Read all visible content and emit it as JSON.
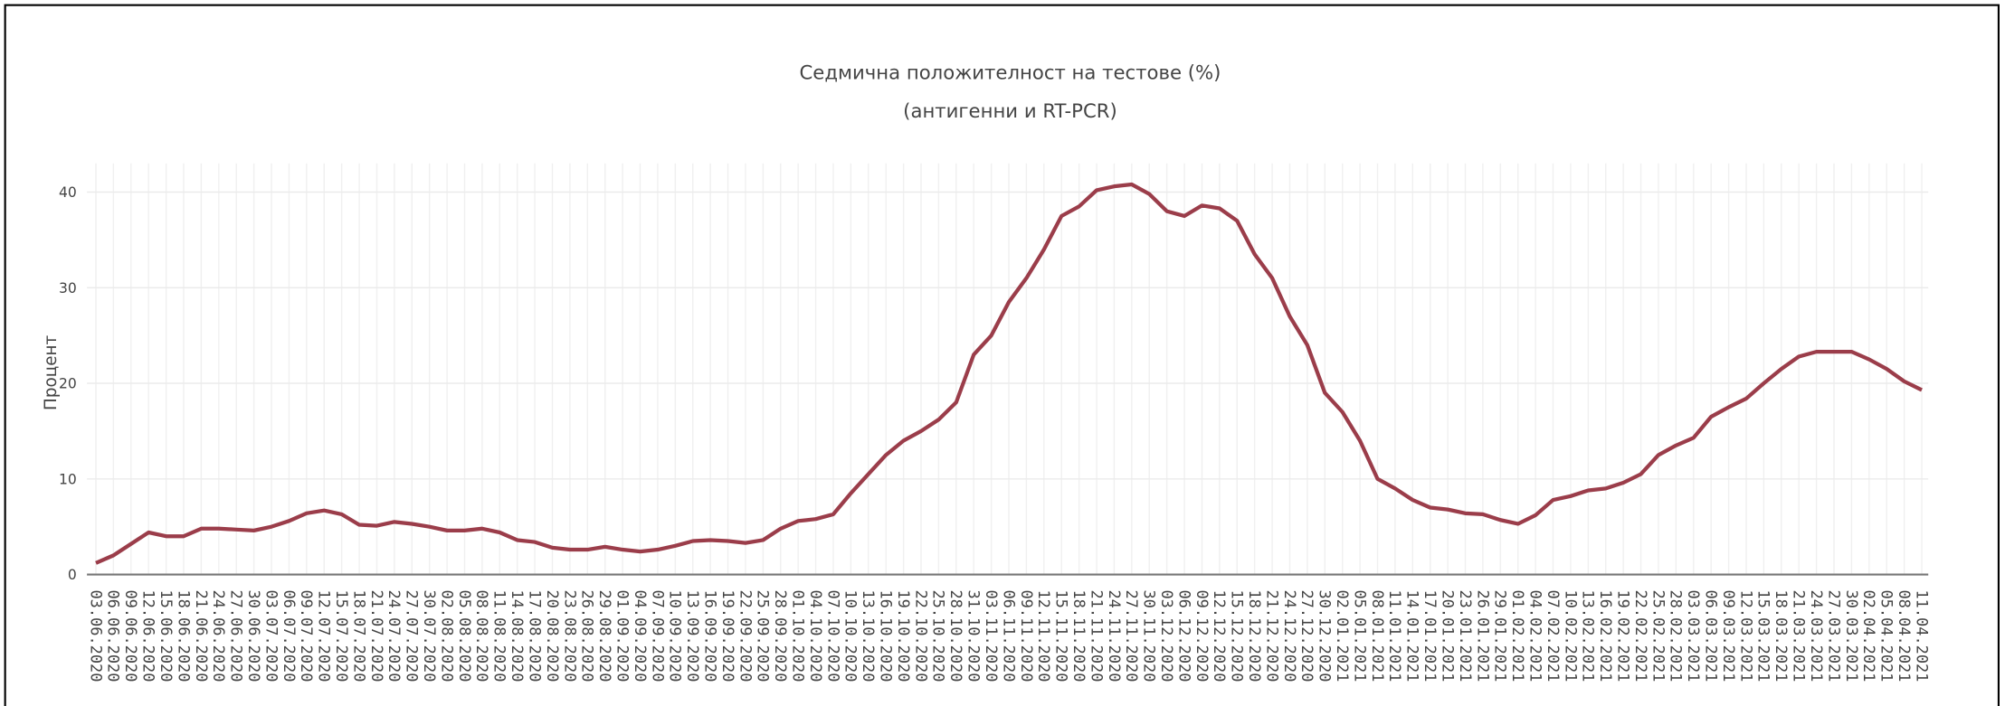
{
  "chart_data": {
    "type": "line",
    "title": "Седмична положителност на тестове (%)",
    "subtitle": "(антигенни и RT-PCR)",
    "y_label": "Процент",
    "categories": [
      "03.06.2020",
      "06.06.2020",
      "09.06.2020",
      "12.06.2020",
      "15.06.2020",
      "18.06.2020",
      "21.06.2020",
      "24.06.2020",
      "27.06.2020",
      "30.06.2020",
      "03.07.2020",
      "06.07.2020",
      "09.07.2020",
      "12.07.2020",
      "15.07.2020",
      "18.07.2020",
      "21.07.2020",
      "24.07.2020",
      "27.07.2020",
      "30.07.2020",
      "02.08.2020",
      "05.08.2020",
      "08.08.2020",
      "11.08.2020",
      "14.08.2020",
      "17.08.2020",
      "20.08.2020",
      "23.08.2020",
      "26.08.2020",
      "29.08.2020",
      "01.09.2020",
      "04.09.2020",
      "07.09.2020",
      "10.09.2020",
      "13.09.2020",
      "16.09.2020",
      "19.09.2020",
      "22.09.2020",
      "25.09.2020",
      "28.09.2020",
      "01.10.2020",
      "04.10.2020",
      "07.10.2020",
      "10.10.2020",
      "13.10.2020",
      "16.10.2020",
      "19.10.2020",
      "22.10.2020",
      "25.10.2020",
      "28.10.2020",
      "31.10.2020",
      "03.11.2020",
      "06.11.2020",
      "09.11.2020",
      "12.11.2020",
      "15.11.2020",
      "18.11.2020",
      "21.11.2020",
      "24.11.2020",
      "27.11.2020",
      "30.11.2020",
      "03.12.2020",
      "06.12.2020",
      "09.12.2020",
      "12.12.2020",
      "15.12.2020",
      "18.12.2020",
      "21.12.2020",
      "24.12.2020",
      "27.12.2020",
      "30.12.2020",
      "02.01.2021",
      "05.01.2021",
      "08.01.2021",
      "11.01.2021",
      "14.01.2021",
      "17.01.2021",
      "20.01.2021",
      "23.01.2021",
      "26.01.2021",
      "29.01.2021",
      "01.02.2021",
      "04.02.2021",
      "07.02.2021",
      "10.02.2021",
      "13.02.2021",
      "16.02.2021",
      "19.02.2021",
      "22.02.2021",
      "25.02.2021",
      "28.02.2021",
      "03.03.2021",
      "06.03.2021",
      "09.03.2021",
      "12.03.2021",
      "15.03.2021",
      "18.03.2021",
      "21.03.2021",
      "24.03.2021",
      "27.03.2021",
      "30.03.2021",
      "02.04.2021",
      "05.04.2021",
      "08.04.2021",
      "11.04.2021"
    ],
    "series": [
      {
        "name": "Седмична положителност",
        "color": "#9b3d4a",
        "values": [
          1.2,
          2.0,
          3.2,
          4.4,
          4.0,
          4.0,
          4.8,
          4.8,
          4.7,
          4.6,
          5.0,
          5.6,
          6.4,
          6.7,
          6.3,
          5.2,
          5.1,
          5.5,
          5.3,
          5.0,
          4.6,
          4.6,
          4.8,
          4.4,
          3.6,
          3.4,
          2.8,
          2.6,
          2.6,
          2.9,
          2.6,
          2.4,
          2.6,
          3.0,
          3.5,
          3.6,
          3.5,
          3.3,
          3.6,
          4.8,
          5.6,
          5.8,
          6.3,
          8.5,
          10.5,
          12.5,
          14.0,
          15.0,
          16.2,
          18.0,
          23.0,
          25.0,
          28.5,
          31.0,
          34.0,
          37.5,
          38.5,
          40.2,
          40.6,
          40.8,
          39.8,
          38.0,
          37.5,
          38.6,
          38.3,
          37.0,
          33.5,
          31.0,
          27.0,
          24.0,
          19.0,
          17.0,
          14.0,
          10.0,
          9.0,
          7.8,
          7.0,
          6.8,
          6.4,
          6.3,
          5.7,
          5.3,
          6.2,
          7.8,
          8.2,
          8.8,
          9.0,
          9.6,
          10.5,
          12.5,
          13.5,
          14.3,
          16.5,
          17.5,
          18.4,
          20.0,
          21.5,
          22.8,
          23.3,
          23.3,
          23.3,
          22.5,
          21.5,
          20.2,
          19.3
        ]
      }
    ],
    "ylim": [
      0,
      43
    ],
    "yticks": [
      0,
      10,
      20,
      30,
      40
    ],
    "grid": true
  }
}
